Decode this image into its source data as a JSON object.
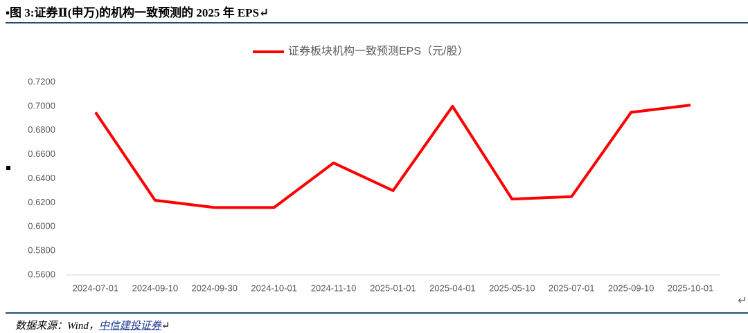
{
  "caption": "图 3:证券Ⅱ(申万)的机构一致预测的 2025 年 EPS↵",
  "chart_data": {
    "type": "line",
    "categories": [
      "2024-07-01",
      "2024-09-10",
      "2024-09-30",
      "2024-10-01",
      "2024-11-10",
      "2025-01-01",
      "2025-04-01",
      "2025-05-10",
      "2025-07-01",
      "2025-09-10",
      "2025-10-01"
    ],
    "series": [
      {
        "name": "证券板块机构一致预测EPS（元/股）",
        "color": "#ff0000",
        "values": [
          0.695,
          0.622,
          0.616,
          0.616,
          0.653,
          0.63,
          0.7,
          0.623,
          0.625,
          0.695,
          0.701
        ]
      }
    ],
    "ylim": [
      0.56,
      0.72
    ],
    "yticks": [
      {
        "value": 0.56,
        "label": "0.5600"
      },
      {
        "value": 0.58,
        "label": "0.5800"
      },
      {
        "value": 0.6,
        "label": "0.6000"
      },
      {
        "value": 0.62,
        "label": "0.6200"
      },
      {
        "value": 0.64,
        "label": "0.6400"
      },
      {
        "value": 0.66,
        "label": "0.6600"
      },
      {
        "value": 0.68,
        "label": "0.6800"
      },
      {
        "value": 0.7,
        "label": "0.7000"
      },
      {
        "value": 0.72,
        "label": "0.7200"
      }
    ],
    "grid": false,
    "legend": "top"
  },
  "chart_mark": "↵",
  "source": {
    "prefix": "数据来源：Wind，",
    "link": "中信建投证券",
    "mark": "↵"
  }
}
